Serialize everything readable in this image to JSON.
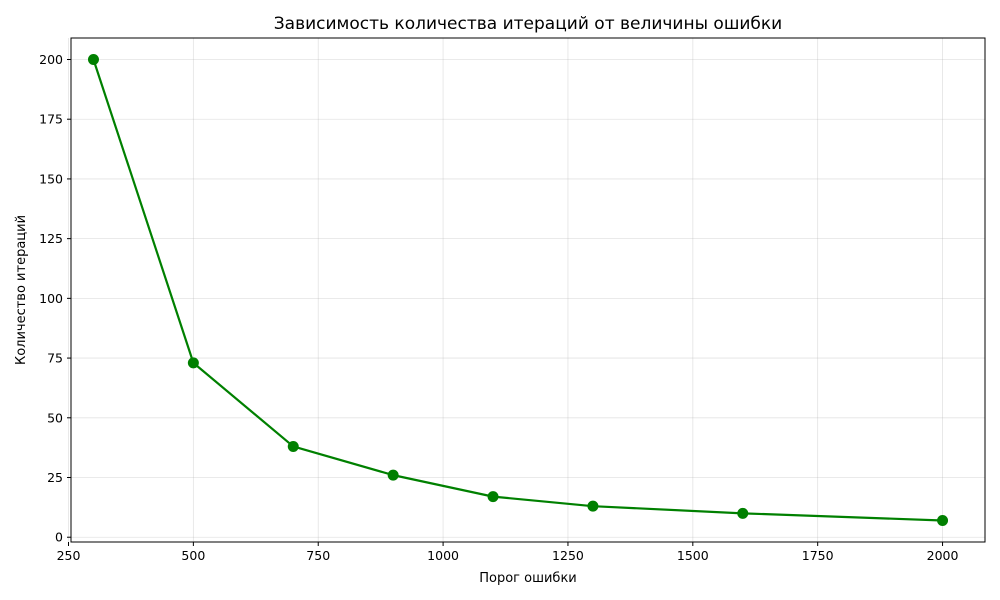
{
  "chart_data": {
    "type": "line",
    "title": "Зависимость количества итераций от величины ошибки",
    "xlabel": "Порог ошибки",
    "ylabel": "Количество итераций",
    "xlim": [
      255,
      2085
    ],
    "ylim": [
      -2,
      209
    ],
    "xticks": [
      250,
      500,
      750,
      1000,
      1250,
      1500,
      1750,
      2000
    ],
    "yticks": [
      0,
      25,
      50,
      75,
      100,
      125,
      150,
      175,
      200
    ],
    "grid": true,
    "series": [
      {
        "color": "#008000",
        "marker": "circle",
        "points": [
          {
            "x": 300,
            "y": 200
          },
          {
            "x": 500,
            "y": 73
          },
          {
            "x": 700,
            "y": 38
          },
          {
            "x": 900,
            "y": 26
          },
          {
            "x": 1100,
            "y": 17
          },
          {
            "x": 1300,
            "y": 13
          },
          {
            "x": 1600,
            "y": 10
          },
          {
            "x": 2000,
            "y": 7
          }
        ]
      }
    ]
  }
}
